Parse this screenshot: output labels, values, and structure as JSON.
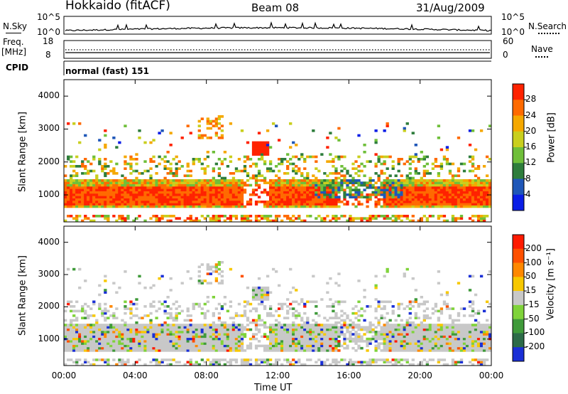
{
  "header": {
    "station": "Hokkaido (fitACF)",
    "beam": "Beam 08",
    "date": "31/Aug/2009"
  },
  "top_panels": {
    "nsky_label": "N.Sky",
    "nsky_ticks": [
      "10^5",
      "10^0"
    ],
    "nsearch_label": "N.Search",
    "nsearch_ticks": [
      "10^5",
      "10^0"
    ],
    "freq_label": "Freq.",
    "freq_unit": "[MHz]",
    "freq_ticks": [
      "18",
      "8"
    ],
    "nave_label": "Nave",
    "nave_ticks": [
      "60",
      "0"
    ],
    "cpid_label": "CPID",
    "cpid_value": "normal (fast) 151"
  },
  "chart_data": [
    {
      "type": "heatmap",
      "quantity": "power",
      "ylabel": "Slant Range [km]",
      "xlabel": "",
      "ylim": [
        180,
        4500
      ],
      "yticks": [
        "1000",
        "2000",
        "3000",
        "4000"
      ],
      "xticks": [],
      "colorbar": {
        "label": "Power [dB]",
        "ticks": [
          "4",
          "8",
          "12",
          "16",
          "20",
          "24",
          "28"
        ],
        "colors": [
          "#0a1ee6",
          "#1f57b8",
          "#2e7d3c",
          "#6fbf3a",
          "#c9cf1e",
          "#f5a800",
          "#ff6a00",
          "#ff2200"
        ]
      }
    },
    {
      "type": "heatmap",
      "quantity": "velocity",
      "ylabel": "Slant Range [km]",
      "xlabel": "Time UT",
      "ylim": [
        180,
        4500
      ],
      "yticks": [
        "1000",
        "2000",
        "3000",
        "4000"
      ],
      "xticks": [
        "00:00",
        "04:00",
        "08:00",
        "12:00",
        "16:00",
        "20:00",
        "00:00"
      ],
      "colorbar": {
        "label": "Velocity [m s⁻¹]",
        "ticks": [
          "200",
          "100",
          "50",
          "15",
          "-15",
          "-50",
          "-100",
          "-200"
        ],
        "colors": [
          "#1a2fd6",
          "#2c6b48",
          "#3f9a3a",
          "#7fd33a",
          "#c8c8c8",
          "#f7c800",
          "#ff8800",
          "#ff5000",
          "#ff1a00"
        ]
      }
    }
  ]
}
